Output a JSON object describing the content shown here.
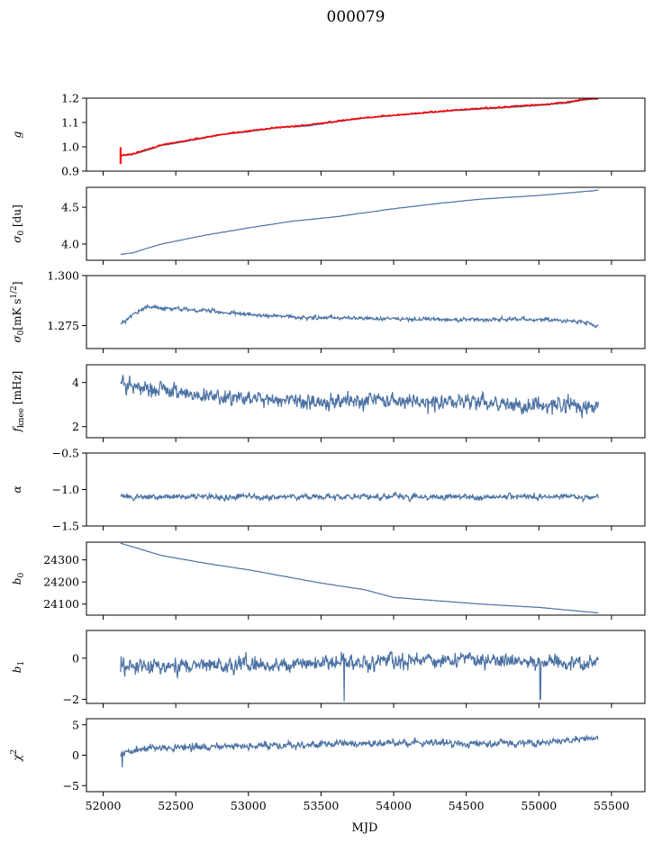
{
  "figure": {
    "title": "000079",
    "xlabel": "MJD",
    "x_ticks": [
      52000,
      52500,
      53000,
      53500,
      54000,
      54500,
      55000,
      55500
    ],
    "x_range": [
      51885,
      55730
    ]
  },
  "colors": {
    "series": "#4c72a4",
    "highlight": "#ff0000",
    "axis": "#000000",
    "background": "#ffffff"
  },
  "chart_data": [
    {
      "type": "line",
      "ylabel": "g",
      "ylim": [
        0.9,
        1.2
      ],
      "y_ticks": [
        0.9,
        1.0,
        1.1,
        1.2
      ],
      "tick_decimals": 1,
      "show_x_ticklabels": false,
      "series": [
        {
          "color": "#4c72a4",
          "mode": "anchors",
          "anchors": [
            [
              52120,
              0.963
            ],
            [
              52200,
              0.968
            ],
            [
              52300,
              0.985
            ],
            [
              52400,
              1.005
            ],
            [
              52600,
              1.025
            ],
            [
              52800,
              1.048
            ],
            [
              53000,
              1.062
            ],
            [
              53200,
              1.078
            ],
            [
              53400,
              1.085
            ],
            [
              53600,
              1.102
            ],
            [
              53800,
              1.118
            ],
            [
              54000,
              1.128
            ],
            [
              54200,
              1.138
            ],
            [
              54400,
              1.148
            ],
            [
              54600,
              1.155
            ],
            [
              54800,
              1.162
            ],
            [
              55000,
              1.17
            ],
            [
              55200,
              1.18
            ],
            [
              55300,
              1.192
            ],
            [
              55410,
              1.198
            ]
          ],
          "noise": 0.002
        },
        {
          "color": "#ff0000",
          "mode": "anchors",
          "anchors": [
            [
              52120,
              0.965
            ],
            [
              52200,
              0.97
            ],
            [
              52300,
              0.988
            ],
            [
              52400,
              1.008
            ],
            [
              52600,
              1.028
            ],
            [
              52800,
              1.05
            ],
            [
              53000,
              1.065
            ],
            [
              53200,
              1.08
            ],
            [
              53400,
              1.088
            ],
            [
              53600,
              1.105
            ],
            [
              53800,
              1.12
            ],
            [
              54000,
              1.13
            ],
            [
              54200,
              1.14
            ],
            [
              54400,
              1.15
            ],
            [
              54600,
              1.158
            ],
            [
              54800,
              1.165
            ],
            [
              55000,
              1.173
            ],
            [
              55200,
              1.183
            ],
            [
              55300,
              1.195
            ],
            [
              55410,
              1.2
            ]
          ],
          "noise": 0.004,
          "spike": {
            "x": 52120,
            "ymin": 0.93,
            "ymax": 0.998
          }
        }
      ]
    },
    {
      "type": "line",
      "ylabel": "σ0 [du]",
      "ylim": [
        3.78,
        4.77
      ],
      "y_ticks": [
        4.0,
        4.5
      ],
      "tick_decimals": 1,
      "show_x_ticklabels": false,
      "series": [
        {
          "color": "#4c72a4",
          "mode": "anchors",
          "anchors": [
            [
              52120,
              3.86
            ],
            [
              52200,
              3.88
            ],
            [
              52400,
              4.0
            ],
            [
              52700,
              4.12
            ],
            [
              53000,
              4.22
            ],
            [
              53300,
              4.31
            ],
            [
              53600,
              4.37
            ],
            [
              54000,
              4.48
            ],
            [
              54300,
              4.55
            ],
            [
              54600,
              4.61
            ],
            [
              55000,
              4.66
            ],
            [
              55410,
              4.73
            ]
          ],
          "noise": 0.004
        }
      ]
    },
    {
      "type": "line",
      "ylabel": "σ0[mK s^1/2]",
      "ylim": [
        1.2635,
        1.3
      ],
      "y_ticks": [
        1.275,
        1.3
      ],
      "tick_decimals": 3,
      "show_x_ticklabels": false,
      "series": [
        {
          "color": "#4c72a4",
          "mode": "noise",
          "anchors": [
            [
              52120,
              1.2755
            ],
            [
              52200,
              1.2805
            ],
            [
              52300,
              1.2845
            ],
            [
              52500,
              1.2835
            ],
            [
              52700,
              1.2825
            ],
            [
              53000,
              1.2805
            ],
            [
              53400,
              1.279
            ],
            [
              54000,
              1.2785
            ],
            [
              54500,
              1.278
            ],
            [
              55000,
              1.278
            ],
            [
              55300,
              1.277
            ],
            [
              55410,
              1.2745
            ]
          ],
          "noise": 0.0011
        }
      ]
    },
    {
      "type": "line",
      "ylabel": "fknee [mHz]",
      "ylim": [
        1.5,
        4.8
      ],
      "y_ticks": [
        2,
        4
      ],
      "tick_decimals": 0,
      "show_x_ticklabels": false,
      "series": [
        {
          "color": "#4c72a4",
          "mode": "noise",
          "anchors": [
            [
              52120,
              4.0
            ],
            [
              52300,
              3.7
            ],
            [
              52600,
              3.5
            ],
            [
              53000,
              3.3
            ],
            [
              53500,
              3.2
            ],
            [
              54000,
              3.15
            ],
            [
              54500,
              3.1
            ],
            [
              55000,
              3.0
            ],
            [
              55410,
              2.9
            ]
          ],
          "noise": 0.42
        }
      ]
    },
    {
      "type": "line",
      "ylabel": "α",
      "ylim": [
        -1.5,
        -0.5
      ],
      "y_ticks": [
        -1.5,
        -1.0,
        -0.5
      ],
      "tick_decimals": 1,
      "show_x_ticklabels": false,
      "series": [
        {
          "color": "#4c72a4",
          "mode": "noise",
          "anchors": [
            [
              52120,
              -1.1
            ],
            [
              55410,
              -1.1
            ]
          ],
          "noise": 0.045
        }
      ]
    },
    {
      "type": "line",
      "ylabel": "b0",
      "ylim": [
        24050,
        24380
      ],
      "y_ticks": [
        24100,
        24200,
        24300
      ],
      "tick_decimals": 0,
      "show_x_ticklabels": false,
      "series": [
        {
          "color": "#4c72a4",
          "mode": "anchors",
          "anchors": [
            [
              52120,
              24375
            ],
            [
              52200,
              24360
            ],
            [
              52400,
              24320
            ],
            [
              52700,
              24285
            ],
            [
              53000,
              24255
            ],
            [
              53250,
              24225
            ],
            [
              53500,
              24195
            ],
            [
              53800,
              24165
            ],
            [
              54000,
              24130
            ],
            [
              54300,
              24115
            ],
            [
              54600,
              24100
            ],
            [
              55000,
              24085
            ],
            [
              55410,
              24060
            ]
          ],
          "noise": 1.0
        }
      ]
    },
    {
      "type": "line",
      "ylabel": "b1",
      "ylim": [
        -2.2,
        1.35
      ],
      "y_ticks": [
        -2,
        0
      ],
      "tick_decimals": 0,
      "show_x_ticklabels": false,
      "series": [
        {
          "color": "#4c72a4",
          "mode": "noise",
          "anchors": [
            [
              52120,
              -0.5
            ],
            [
              52500,
              -0.4
            ],
            [
              53000,
              -0.3
            ],
            [
              53500,
              -0.25
            ],
            [
              54000,
              -0.15
            ],
            [
              54500,
              -0.1
            ],
            [
              55000,
              -0.15
            ],
            [
              55410,
              -0.3
            ]
          ],
          "noise": 0.42,
          "dips": [
            [
              53660,
              -2.1
            ],
            [
              55010,
              -2.0
            ]
          ]
        }
      ]
    },
    {
      "type": "line",
      "ylabel": "χ^2",
      "ylim": [
        -6.0,
        6.0
      ],
      "y_ticks": [
        -5,
        0,
        5
      ],
      "tick_decimals": 0,
      "show_x_ticklabels": true,
      "series": [
        {
          "color": "#4c72a4",
          "mode": "noise",
          "anchors": [
            [
              52120,
              0.2
            ],
            [
              52300,
              1.2
            ],
            [
              53000,
              1.5
            ],
            [
              53500,
              1.8
            ],
            [
              54000,
              2.0
            ],
            [
              54500,
              1.9
            ],
            [
              55000,
              2.0
            ],
            [
              55410,
              2.8
            ]
          ],
          "noise": 0.65,
          "dips": [
            [
              52130,
              -2.0
            ]
          ]
        }
      ]
    }
  ]
}
